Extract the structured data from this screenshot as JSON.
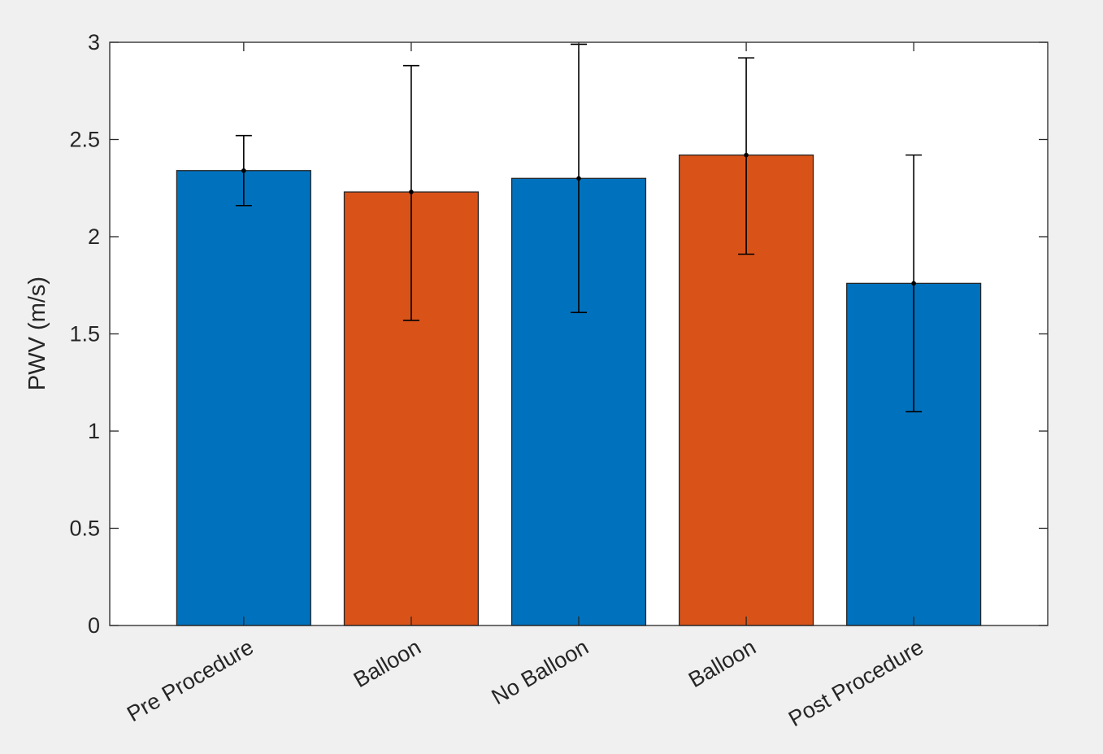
{
  "chart_data": {
    "type": "bar",
    "title": "",
    "xlabel": "",
    "ylabel": "PWV (m/s)",
    "categories": [
      "Pre Procedure",
      "Balloon",
      "No Balloon",
      "Balloon",
      "Post Procedure"
    ],
    "values": [
      2.34,
      2.23,
      2.3,
      2.42,
      1.76
    ],
    "error_low": [
      2.16,
      1.57,
      1.61,
      1.91,
      1.1
    ],
    "error_high": [
      2.52,
      2.88,
      2.99,
      2.92,
      2.42
    ],
    "bar_colors": [
      "#0072bd",
      "#d95319",
      "#0072bd",
      "#d95319",
      "#0072bd"
    ],
    "ylim": [
      0,
      3
    ],
    "yticks": [
      "0",
      "0.5",
      "1",
      "1.5",
      "2",
      "2.5",
      "3"
    ],
    "grid": false,
    "legend": "none"
  }
}
